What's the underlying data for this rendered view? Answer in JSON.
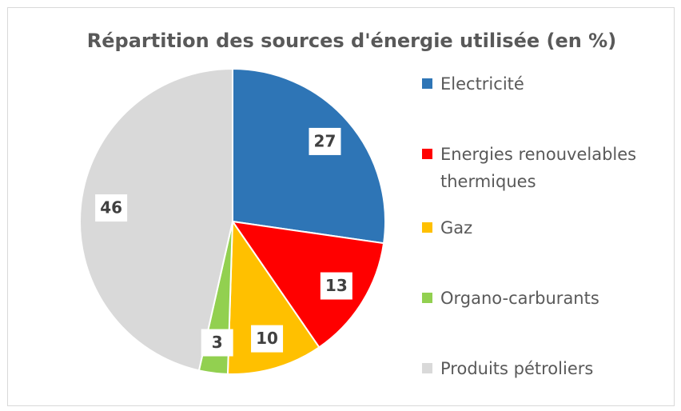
{
  "chart_data": {
    "type": "pie",
    "title": "Répartition des sources d'énergie utilisée (en %)",
    "categories": [
      "Electricité",
      "Energies renouvelables thermiques",
      "Gaz",
      "Organo-carburants",
      "Produits pétroliers"
    ],
    "values": [
      27,
      13,
      10,
      3,
      46
    ],
    "colors": [
      "#2e75b6",
      "#ff0000",
      "#ffc000",
      "#92d050",
      "#d9d9d9"
    ]
  }
}
